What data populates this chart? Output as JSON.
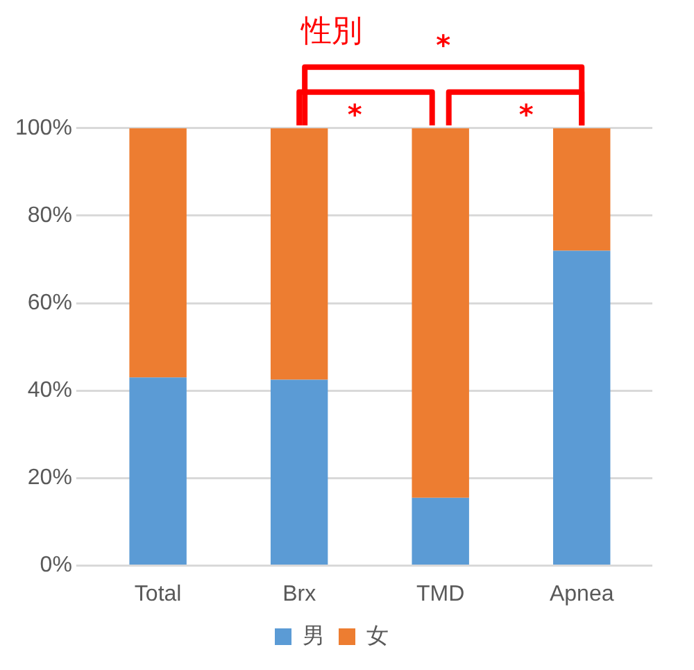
{
  "chart_data": {
    "type": "bar",
    "title": "性別",
    "categories": [
      "Total",
      "Brx",
      "TMD",
      "Apnea"
    ],
    "stacked": true,
    "series": [
      {
        "name": "男",
        "color": "#5b9bd5",
        "values": [
          43,
          42.5,
          15.5,
          72
        ]
      },
      {
        "name": "女",
        "color": "#ed7d31",
        "values": [
          57,
          57.5,
          84.5,
          28
        ]
      }
    ],
    "ylim": [
      0,
      100
    ],
    "yticks": [
      {
        "value": 0,
        "label": "0%"
      },
      {
        "value": 20,
        "label": "20%"
      },
      {
        "value": 40,
        "label": "40%"
      },
      {
        "value": 60,
        "label": "60%"
      },
      {
        "value": 80,
        "label": "80%"
      },
      {
        "value": 100,
        "label": "100%"
      }
    ],
    "grid": "y",
    "legend": "bottom",
    "annotations": [
      "*",
      "*",
      "*"
    ]
  }
}
